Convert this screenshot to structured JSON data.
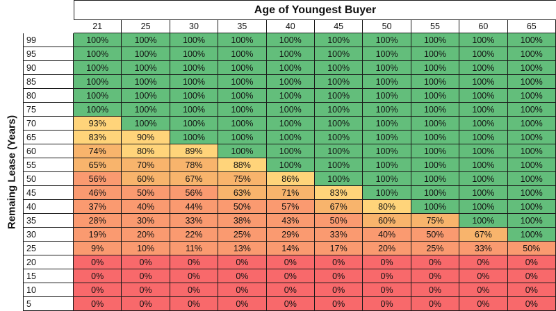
{
  "chart_data": {
    "type": "heatmap",
    "title": "Age of Youngest Buyer",
    "ylabel": "Remaing Lease (Years)",
    "x_categories": [
      "21",
      "25",
      "30",
      "35",
      "40",
      "45",
      "50",
      "55",
      "60",
      "65"
    ],
    "y_categories": [
      "99",
      "95",
      "90",
      "85",
      "80",
      "75",
      "70",
      "65",
      "60",
      "55",
      "50",
      "45",
      "40",
      "35",
      "30",
      "25",
      "20",
      "15",
      "10",
      "5"
    ],
    "values": [
      [
        100,
        100,
        100,
        100,
        100,
        100,
        100,
        100,
        100,
        100
      ],
      [
        100,
        100,
        100,
        100,
        100,
        100,
        100,
        100,
        100,
        100
      ],
      [
        100,
        100,
        100,
        100,
        100,
        100,
        100,
        100,
        100,
        100
      ],
      [
        100,
        100,
        100,
        100,
        100,
        100,
        100,
        100,
        100,
        100
      ],
      [
        100,
        100,
        100,
        100,
        100,
        100,
        100,
        100,
        100,
        100
      ],
      [
        100,
        100,
        100,
        100,
        100,
        100,
        100,
        100,
        100,
        100
      ],
      [
        93,
        100,
        100,
        100,
        100,
        100,
        100,
        100,
        100,
        100
      ],
      [
        83,
        90,
        100,
        100,
        100,
        100,
        100,
        100,
        100,
        100
      ],
      [
        74,
        80,
        89,
        100,
        100,
        100,
        100,
        100,
        100,
        100
      ],
      [
        65,
        70,
        78,
        88,
        100,
        100,
        100,
        100,
        100,
        100
      ],
      [
        56,
        60,
        67,
        75,
        86,
        100,
        100,
        100,
        100,
        100
      ],
      [
        46,
        50,
        56,
        63,
        71,
        83,
        100,
        100,
        100,
        100
      ],
      [
        37,
        40,
        44,
        50,
        57,
        67,
        80,
        100,
        100,
        100
      ],
      [
        28,
        30,
        33,
        38,
        43,
        50,
        60,
        75,
        100,
        100
      ],
      [
        19,
        20,
        22,
        25,
        29,
        33,
        40,
        50,
        67,
        100
      ],
      [
        9,
        10,
        11,
        13,
        14,
        17,
        20,
        25,
        33,
        50
      ],
      [
        0,
        0,
        0,
        0,
        0,
        0,
        0,
        0,
        0,
        0
      ],
      [
        0,
        0,
        0,
        0,
        0,
        0,
        0,
        0,
        0,
        0
      ],
      [
        0,
        0,
        0,
        0,
        0,
        0,
        0,
        0,
        0,
        0
      ],
      [
        0,
        0,
        0,
        0,
        0,
        0,
        0,
        0,
        0,
        0
      ]
    ],
    "value_suffix": "%",
    "colors": {
      "full": "#63be7b",
      "high": "#ffd47a",
      "mid": "#f8b46c",
      "low": "#fa9a70",
      "zero": "#f8696b"
    }
  }
}
